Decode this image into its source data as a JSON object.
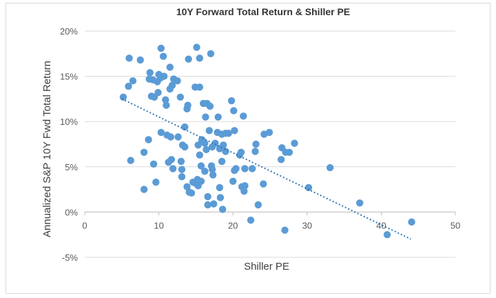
{
  "chart_data": {
    "type": "scatter",
    "title": "10Y Forward Total Return & Shiller PE",
    "xlabel": "Shiller PE",
    "ylabel": "Annualized S&P 10Y Fwd Total Return",
    "xlim": [
      0,
      50
    ],
    "ylim": [
      -5,
      20
    ],
    "x_ticks": [
      "0",
      "10",
      "20",
      "30",
      "40",
      "50"
    ],
    "y_ticks": [
      "-5%",
      "0%",
      "5%",
      "10%",
      "15%",
      "20%"
    ],
    "x_tick_values": [
      0,
      10,
      20,
      30,
      40,
      50
    ],
    "y_tick_values": [
      -5,
      0,
      5,
      10,
      15,
      20
    ],
    "point_color": "#5b9bd5",
    "trendline": {
      "type": "linear",
      "style": "dotted",
      "color": "#2e75b6",
      "x": [
        5,
        44
      ],
      "y": [
        12.5,
        -3.0
      ]
    },
    "grid": {
      "y": true,
      "x": false,
      "color": "#d9d9d9"
    },
    "series": [
      {
        "points": [
          [
            5.2,
            12.7
          ],
          [
            5.9,
            13.9
          ],
          [
            6.0,
            17.0
          ],
          [
            6.2,
            5.7
          ],
          [
            6.5,
            14.5
          ],
          [
            7.5,
            16.8
          ],
          [
            8.0,
            6.6
          ],
          [
            8.0,
            2.5
          ],
          [
            8.6,
            8.0
          ],
          [
            8.7,
            14.7
          ],
          [
            8.8,
            15.4
          ],
          [
            9.0,
            12.8
          ],
          [
            9.2,
            14.6
          ],
          [
            9.3,
            5.3
          ],
          [
            9.4,
            12.7
          ],
          [
            9.6,
            3.3
          ],
          [
            9.8,
            14.4
          ],
          [
            9.9,
            13.2
          ],
          [
            10.0,
            15.2
          ],
          [
            10.2,
            14.8
          ],
          [
            10.3,
            18.1
          ],
          [
            10.3,
            8.8
          ],
          [
            10.6,
            17.2
          ],
          [
            10.7,
            15.0
          ],
          [
            10.9,
            12.4
          ],
          [
            11.0,
            11.8
          ],
          [
            11.1,
            8.5
          ],
          [
            11.3,
            5.5
          ],
          [
            11.5,
            16.0
          ],
          [
            11.5,
            13.6
          ],
          [
            11.6,
            8.3
          ],
          [
            11.7,
            5.8
          ],
          [
            11.8,
            14.0
          ],
          [
            11.9,
            4.8
          ],
          [
            12.0,
            14.7
          ],
          [
            12.5,
            14.5
          ],
          [
            12.6,
            8.3
          ],
          [
            12.9,
            12.7
          ],
          [
            13.0,
            5.6
          ],
          [
            13.1,
            3.9
          ],
          [
            13.1,
            4.7
          ],
          [
            13.2,
            7.4
          ],
          [
            13.5,
            9.4
          ],
          [
            13.5,
            7.2
          ],
          [
            13.8,
            11.4
          ],
          [
            13.8,
            2.8
          ],
          [
            13.9,
            11.8
          ],
          [
            14.0,
            16.9
          ],
          [
            14.1,
            2.2
          ],
          [
            14.4,
            2.1
          ],
          [
            14.6,
            3.3
          ],
          [
            14.9,
            13.8
          ],
          [
            14.9,
            3.2
          ],
          [
            15.1,
            18.2
          ],
          [
            15.2,
            3.6
          ],
          [
            15.3,
            7.4
          ],
          [
            15.3,
            2.9
          ],
          [
            15.5,
            13.8
          ],
          [
            15.5,
            6.3
          ],
          [
            15.5,
            17.0
          ],
          [
            15.7,
            3.4
          ],
          [
            15.7,
            5.1
          ],
          [
            15.8,
            8.0
          ],
          [
            15.9,
            7.8
          ],
          [
            16.0,
            12.0
          ],
          [
            16.2,
            7.6
          ],
          [
            16.2,
            4.5
          ],
          [
            16.3,
            10.5
          ],
          [
            16.4,
            6.9
          ],
          [
            16.5,
            12.0
          ],
          [
            16.6,
            0.8
          ],
          [
            16.6,
            1.7
          ],
          [
            16.8,
            9.0
          ],
          [
            16.9,
            11.7
          ],
          [
            17.0,
            17.5
          ],
          [
            17.1,
            5.1
          ],
          [
            17.2,
            7.2
          ],
          [
            17.2,
            4.7
          ],
          [
            17.3,
            4.1
          ],
          [
            17.4,
            0.9
          ],
          [
            17.6,
            7.6
          ],
          [
            17.9,
            8.8
          ],
          [
            18.0,
            10.5
          ],
          [
            18.2,
            7.0
          ],
          [
            18.2,
            2.7
          ],
          [
            18.3,
            1.6
          ],
          [
            18.5,
            5.6
          ],
          [
            18.5,
            8.6
          ],
          [
            18.6,
            0.3
          ],
          [
            18.7,
            7.4
          ],
          [
            19.0,
            8.7
          ],
          [
            19.0,
            6.7
          ],
          [
            19.4,
            8.7
          ],
          [
            19.8,
            12.3
          ],
          [
            20.0,
            3.4
          ],
          [
            20.1,
            11.2
          ],
          [
            20.2,
            4.6
          ],
          [
            20.4,
            4.8
          ],
          [
            20.2,
            9.0
          ],
          [
            20.9,
            6.3
          ],
          [
            21.1,
            6.6
          ],
          [
            21.2,
            2.8
          ],
          [
            21.4,
            10.6
          ],
          [
            21.5,
            2.3
          ],
          [
            21.6,
            4.8
          ],
          [
            21.6,
            2.9
          ],
          [
            22.4,
            -0.9
          ],
          [
            22.6,
            4.8
          ],
          [
            23.0,
            6.7
          ],
          [
            23.1,
            7.5
          ],
          [
            23.4,
            0.8
          ],
          [
            24.1,
            3.1
          ],
          [
            24.2,
            8.6
          ],
          [
            24.9,
            8.8
          ],
          [
            26.5,
            5.8
          ],
          [
            26.6,
            7.1
          ],
          [
            27.0,
            -2.0
          ],
          [
            27.1,
            6.6
          ],
          [
            27.6,
            6.6
          ],
          [
            28.3,
            7.6
          ],
          [
            30.2,
            2.7
          ],
          [
            33.1,
            4.9
          ],
          [
            37.1,
            1.0
          ],
          [
            40.8,
            -2.5
          ],
          [
            44.1,
            -1.1
          ]
        ]
      }
    ]
  }
}
